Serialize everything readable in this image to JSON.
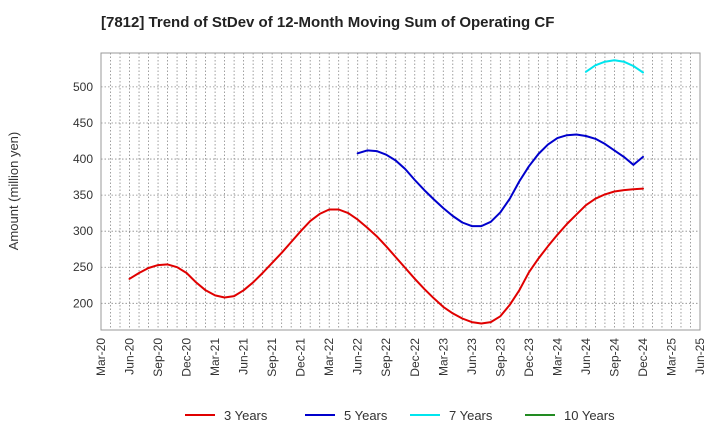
{
  "chart_data": {
    "type": "line",
    "title": "[7812]  Trend of StDev of 12-Month Moving Sum of Operating CF",
    "xlabel": "",
    "ylabel": "Amount (million yen)",
    "x_tick_labels": [
      "Mar-20",
      "Jun-20",
      "Sep-20",
      "Dec-20",
      "Mar-21",
      "Jun-21",
      "Sep-21",
      "Dec-21",
      "Mar-22",
      "Jun-22",
      "Sep-22",
      "Dec-22",
      "Mar-23",
      "Jun-23",
      "Sep-23",
      "Dec-23",
      "Mar-24",
      "Jun-24",
      "Sep-24",
      "Dec-24",
      "Mar-25",
      "Jun-25"
    ],
    "y_ticks": [
      200,
      250,
      300,
      350,
      400,
      450,
      500
    ],
    "ylim": [
      163,
      547
    ],
    "grid": true,
    "legend_position": "bottom",
    "series": [
      {
        "name": "3 Years",
        "color": "#e00000",
        "x": [
          "Jun-20",
          "Jul-20",
          "Aug-20",
          "Sep-20",
          "Oct-20",
          "Nov-20",
          "Dec-20",
          "Jan-21",
          "Feb-21",
          "Mar-21",
          "Apr-21",
          "May-21",
          "Jun-21",
          "Jul-21",
          "Aug-21",
          "Sep-21",
          "Oct-21",
          "Nov-21",
          "Dec-21",
          "Jan-22",
          "Feb-22",
          "Mar-22",
          "Apr-22",
          "May-22",
          "Jun-22",
          "Jul-22",
          "Aug-22",
          "Sep-22",
          "Oct-22",
          "Nov-22",
          "Dec-22",
          "Jan-23",
          "Feb-23",
          "Mar-23",
          "Apr-23",
          "May-23",
          "Jun-23",
          "Jul-23",
          "Aug-23",
          "Sep-23",
          "Oct-23",
          "Nov-23",
          "Dec-23",
          "Jan-24",
          "Feb-24",
          "Mar-24",
          "Apr-24",
          "May-24",
          "Jun-24",
          "Jul-24",
          "Aug-24",
          "Sep-24",
          "Oct-24",
          "Nov-24",
          "Dec-24"
        ],
        "values": [
          234,
          242,
          249,
          253,
          254,
          250,
          242,
          229,
          218,
          211,
          208,
          210,
          218,
          229,
          242,
          256,
          270,
          285,
          300,
          314,
          324,
          330,
          330,
          325,
          316,
          305,
          293,
          279,
          264,
          249,
          234,
          220,
          207,
          195,
          186,
          179,
          174,
          172,
          174,
          182,
          198,
          218,
          243,
          262,
          279,
          295,
          310,
          323,
          336,
          345,
          351,
          355,
          357,
          358,
          359
        ]
      },
      {
        "name": "5 Years",
        "color": "#0000cc",
        "x": [
          "Jun-22",
          "Jul-22",
          "Aug-22",
          "Sep-22",
          "Oct-22",
          "Nov-22",
          "Dec-22",
          "Jan-23",
          "Feb-23",
          "Mar-23",
          "Apr-23",
          "May-23",
          "Jun-23",
          "Jul-23",
          "Aug-23",
          "Sep-23",
          "Oct-23",
          "Nov-23",
          "Dec-23",
          "Jan-24",
          "Feb-24",
          "Mar-24",
          "Apr-24",
          "May-24",
          "Jun-24",
          "Jul-24",
          "Aug-24",
          "Sep-24",
          "Oct-24",
          "Nov-24",
          "Dec-24"
        ],
        "values": [
          408,
          412,
          411,
          406,
          398,
          386,
          371,
          357,
          344,
          332,
          321,
          312,
          307,
          307,
          313,
          326,
          345,
          369,
          390,
          407,
          420,
          429,
          433,
          434,
          432,
          428,
          421,
          412,
          403,
          392,
          403
        ]
      },
      {
        "name": "7 Years",
        "color": "#00e5ee",
        "x": [
          "Jun-24",
          "Jul-24",
          "Aug-24",
          "Sep-24",
          "Oct-24",
          "Nov-24",
          "Dec-24"
        ],
        "values": [
          521,
          530,
          535,
          537,
          535,
          529,
          520
        ]
      },
      {
        "name": "10 Years",
        "color": "#228b22",
        "x": [],
        "values": []
      }
    ]
  }
}
